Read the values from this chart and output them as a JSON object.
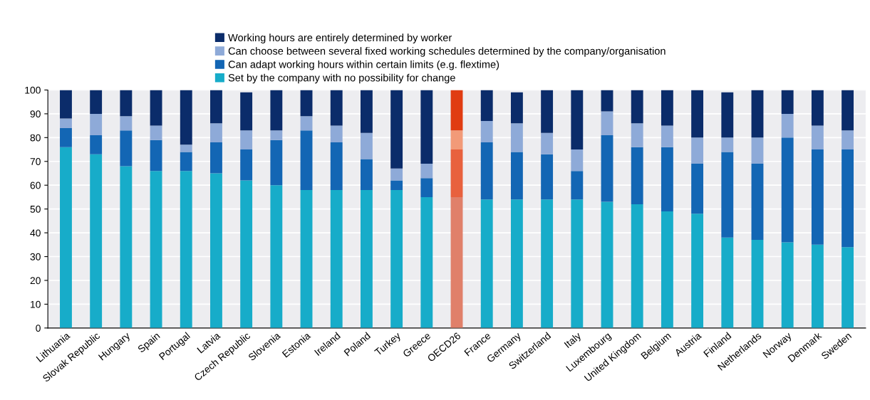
{
  "chart_data": {
    "type": "bar",
    "stacked": true,
    "categories": [
      "Lithuania",
      "Slovak Republic",
      "Hungary",
      "Spain",
      "Portugal",
      "Latvia",
      "Czech Republic",
      "Slovenia",
      "Estonia",
      "Ireland",
      "Poland",
      "Turkey",
      "Greece",
      "OECD26",
      "France",
      "Germany",
      "Switzerland",
      "Italy",
      "Luxembourg",
      "United Kingdom",
      "Belgium",
      "Austria",
      "Finland",
      "Netherlands",
      "Norway",
      "Denmark",
      "Sweden"
    ],
    "series": [
      {
        "name": "Set by the company with no possibility for change",
        "color": "#17acc9",
        "colors": [
          "#17acc9",
          "#17acc9",
          "#17acc9",
          "#17acc9",
          "#17acc9",
          "#17acc9",
          "#17acc9",
          "#17acc9",
          "#17acc9",
          "#17acc9",
          "#17acc9",
          "#17acc9",
          "#17acc9",
          "#e0806a",
          "#17acc9",
          "#17acc9",
          "#17acc9",
          "#17acc9",
          "#17acc9",
          "#17acc9",
          "#17acc9",
          "#17acc9",
          "#17acc9",
          "#17acc9",
          "#17acc9",
          "#17acc9",
          "#17acc9"
        ],
        "values": [
          76,
          73,
          68,
          66,
          66,
          65,
          62,
          60,
          58,
          58,
          58,
          58,
          55,
          55,
          54,
          54,
          54,
          54,
          53,
          52,
          49,
          48,
          38,
          37,
          36,
          35,
          34
        ]
      },
      {
        "name": "Can adapt working hours within certain limits (e.g. flextime)",
        "color": "#1366b4",
        "colors": [
          "#1366b4",
          "#1366b4",
          "#1366b4",
          "#1366b4",
          "#1366b4",
          "#1366b4",
          "#1366b4",
          "#1366b4",
          "#1366b4",
          "#1366b4",
          "#1366b4",
          "#1366b4",
          "#1366b4",
          "#e8613e",
          "#1366b4",
          "#1366b4",
          "#1366b4",
          "#1366b4",
          "#1366b4",
          "#1366b4",
          "#1366b4",
          "#1366b4",
          "#1366b4",
          "#1366b4",
          "#1366b4",
          "#1366b4",
          "#1366b4"
        ],
        "values": [
          8,
          8,
          15,
          13,
          8,
          13,
          13,
          19,
          25,
          20,
          13,
          4,
          8,
          20,
          24,
          20,
          19,
          12,
          28,
          24,
          27,
          21,
          36,
          32,
          44,
          40,
          41
        ]
      },
      {
        "name": "Can choose between several fixed working schedules determined by the company/organisation",
        "color": "#8eaad8",
        "colors": [
          "#8eaad8",
          "#8eaad8",
          "#8eaad8",
          "#8eaad8",
          "#8eaad8",
          "#8eaad8",
          "#8eaad8",
          "#8eaad8",
          "#8eaad8",
          "#8eaad8",
          "#8eaad8",
          "#8eaad8",
          "#8eaad8",
          "#f29a78",
          "#8eaad8",
          "#8eaad8",
          "#8eaad8",
          "#8eaad8",
          "#8eaad8",
          "#8eaad8",
          "#8eaad8",
          "#8eaad8",
          "#8eaad8",
          "#8eaad8",
          "#8eaad8",
          "#8eaad8",
          "#8eaad8"
        ],
        "values": [
          4,
          9,
          6,
          6,
          3,
          8,
          8,
          4,
          6,
          7,
          11,
          5,
          6,
          8,
          9,
          12,
          9,
          9,
          10,
          10,
          9,
          11,
          6,
          11,
          10,
          10,
          8
        ]
      },
      {
        "name": "Working hours are entirely determined by worker",
        "color": "#0b2c6a",
        "colors": [
          "#0b2c6a",
          "#0b2c6a",
          "#0b2c6a",
          "#0b2c6a",
          "#0b2c6a",
          "#0b2c6a",
          "#0b2c6a",
          "#0b2c6a",
          "#0b2c6a",
          "#0b2c6a",
          "#0b2c6a",
          "#0b2c6a",
          "#0b2c6a",
          "#e03c12",
          "#0b2c6a",
          "#0b2c6a",
          "#0b2c6a",
          "#0b2c6a",
          "#0b2c6a",
          "#0b2c6a",
          "#0b2c6a",
          "#0b2c6a",
          "#0b2c6a",
          "#0b2c6a",
          "#0b2c6a",
          "#0b2c6a",
          "#0b2c6a"
        ],
        "values": [
          12,
          10,
          11,
          15,
          23,
          14,
          16,
          17,
          11,
          15,
          18,
          33,
          31,
          17,
          13,
          13,
          18,
          25,
          9,
          14,
          15,
          20,
          19,
          20,
          10,
          15,
          17
        ]
      }
    ],
    "ylim": [
      0,
      100
    ],
    "yticks": [
      0,
      10,
      20,
      30,
      40,
      50,
      60,
      70,
      80,
      90,
      100
    ],
    "grid": "y",
    "legend": "top left"
  }
}
